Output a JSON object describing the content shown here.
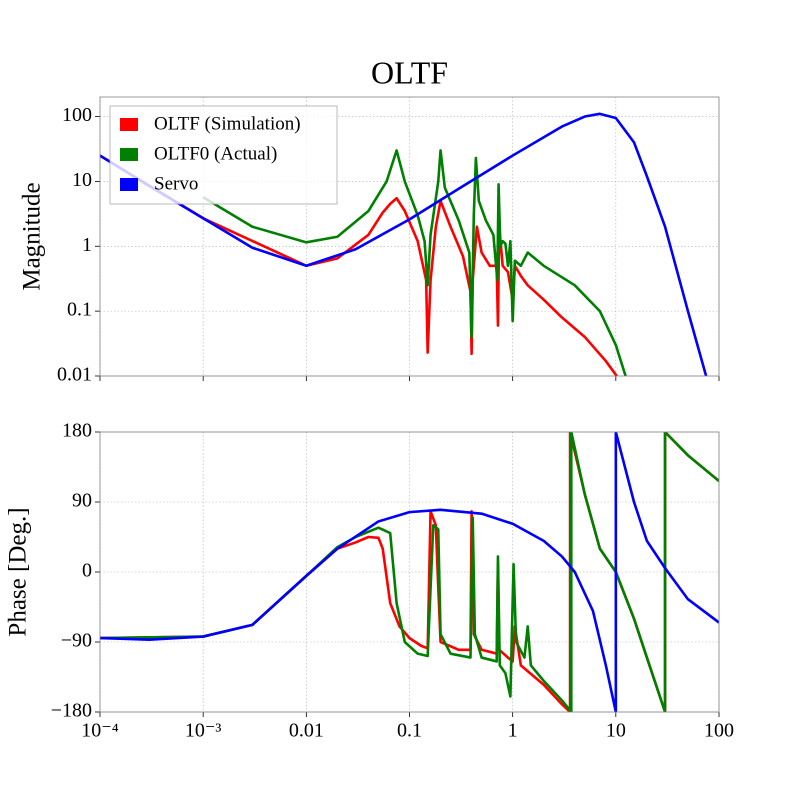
{
  "chart_data": [
    {
      "type": "line",
      "title": "OLTF",
      "ylabel": "Magnitude",
      "xscale": "log",
      "yscale": "log",
      "grid": true,
      "legend": "upper left",
      "xlim": [
        0.0001,
        100
      ],
      "xticks": [
        0.0001,
        0.001,
        0.01,
        0.1,
        1,
        10,
        100
      ],
      "ylim": [
        0.01,
        200
      ],
      "yticks": [
        0.01,
        0.1,
        1,
        10,
        100
      ],
      "series": [
        {
          "name": "OLTF (Simulation)",
          "color": "#ff0000",
          "x": [
            0.0001,
            0.001,
            0.01,
            0.02,
            0.04,
            0.055,
            0.065,
            0.075,
            0.09,
            0.12,
            0.145,
            0.15,
            0.16,
            0.18,
            0.2,
            0.25,
            0.33,
            0.39,
            0.4,
            0.41,
            0.45,
            0.5,
            0.6,
            0.7,
            0.72,
            0.74,
            0.8,
            0.9,
            1.0,
            1.05,
            1.2,
            1.4,
            2,
            3,
            5,
            8,
            12
          ],
          "values": [
            25,
            2.7,
            0.5,
            0.65,
            1.5,
            3.3,
            4.5,
            5.5,
            3.5,
            1.2,
            0.3,
            0.023,
            0.3,
            2,
            5,
            2,
            0.7,
            0.2,
            0.022,
            0.3,
            2,
            0.8,
            0.5,
            0.5,
            0.06,
            2,
            0.5,
            0.4,
            0.15,
            0.5,
            0.35,
            0.25,
            0.15,
            0.08,
            0.04,
            0.017,
            0.007
          ]
        },
        {
          "name": "OLTF0 (Actual)",
          "color": "#008000",
          "x": [
            0.001,
            0.003,
            0.01,
            0.02,
            0.04,
            0.06,
            0.075,
            0.09,
            0.12,
            0.14,
            0.15,
            0.16,
            0.19,
            0.2,
            0.22,
            0.3,
            0.38,
            0.4,
            0.42,
            0.44,
            0.47,
            0.55,
            0.65,
            0.71,
            0.73,
            0.76,
            0.8,
            0.85,
            0.9,
            0.95,
            1.0,
            1.05,
            1.2,
            1.4,
            2,
            4,
            7,
            10,
            13
          ],
          "values": [
            5.7,
            2,
            1.15,
            1.4,
            3.5,
            10,
            30,
            10,
            3,
            1.2,
            0.25,
            1.5,
            10,
            30,
            8,
            2.5,
            0.8,
            0.04,
            3,
            23,
            5,
            2.5,
            1.5,
            0.3,
            9,
            1,
            1.2,
            1.1,
            0.5,
            1.2,
            0.07,
            0.6,
            0.5,
            0.8,
            0.5,
            0.25,
            0.1,
            0.03,
            0.008
          ]
        },
        {
          "name": "Servo",
          "color": "#0000ff",
          "x": [
            0.0001,
            0.0003,
            0.001,
            0.003,
            0.01,
            0.03,
            0.1,
            0.3,
            1,
            3,
            5,
            7,
            10,
            15,
            20,
            30,
            50,
            75
          ],
          "values": [
            25,
            8.5,
            2.7,
            0.95,
            0.5,
            0.9,
            2.6,
            7.7,
            25,
            70,
            100,
            110,
            95,
            40,
            12,
            2,
            0.1,
            0.01
          ]
        }
      ]
    },
    {
      "type": "line",
      "ylabel": "Phase [Deg.]",
      "xscale": "log",
      "yscale": "linear",
      "grid": true,
      "xlim": [
        0.0001,
        100
      ],
      "xticks": [
        {
          "value": 0.0001,
          "label": "10⁻⁴"
        },
        {
          "value": 0.001,
          "label": "10⁻³"
        },
        0.01,
        0.1,
        1,
        10,
        100
      ],
      "ylim": [
        -180,
        180
      ],
      "yticks": [
        {
          "value": -180,
          "label": "−180"
        },
        {
          "value": -90,
          "label": "−90"
        },
        0,
        90,
        180
      ],
      "series": [
        {
          "color": "#ff0000",
          "x": [
            0.0001,
            0.001,
            0.003,
            0.01,
            0.02,
            0.03,
            0.04,
            0.05,
            0.055,
            0.065,
            0.08,
            0.1,
            0.13,
            0.15,
            0.16,
            0.18,
            0.19,
            0.2,
            0.3,
            0.39,
            0.4,
            0.42,
            0.5,
            0.7,
            0.72,
            0.74,
            0.9,
            1,
            1.05,
            1.2,
            2,
            3,
            3.6,
            3.6,
            5,
            7,
            10,
            15,
            20,
            30,
            30,
            50,
            100
          ],
          "values": [
            -85,
            -83,
            -68,
            -5,
            30,
            38,
            45,
            44,
            30,
            -40,
            -70,
            -85,
            -95,
            -98,
            78,
            60,
            -20,
            -90,
            -100,
            -100,
            78,
            -80,
            -100,
            -105,
            10,
            -100,
            -110,
            -115,
            -70,
            -120,
            -145,
            -170,
            -180,
            180,
            100,
            30,
            0,
            -60,
            -110,
            -180,
            180,
            150,
            117
          ]
        },
        {
          "color": "#008000",
          "x": [
            0.0001,
            0.001,
            0.003,
            0.01,
            0.02,
            0.03,
            0.05,
            0.065,
            0.075,
            0.09,
            0.12,
            0.15,
            0.17,
            0.19,
            0.2,
            0.25,
            0.39,
            0.41,
            0.43,
            0.5,
            0.7,
            0.72,
            0.75,
            0.85,
            0.95,
            1.02,
            1.08,
            1.3,
            1.4,
            1.5,
            2,
            3,
            3.7,
            3.7,
            5,
            7,
            10,
            15,
            20,
            30,
            30,
            50,
            100
          ],
          "values": [
            -85,
            -83,
            -68,
            -5,
            32,
            45,
            57,
            50,
            -40,
            -90,
            -105,
            -108,
            60,
            55,
            -80,
            -105,
            -110,
            70,
            -80,
            -110,
            -115,
            20,
            -120,
            -130,
            -160,
            10,
            -90,
            -110,
            -70,
            -120,
            -140,
            -165,
            -180,
            180,
            100,
            30,
            0,
            -60,
            -110,
            -180,
            180,
            150,
            117
          ]
        },
        {
          "color": "#0000ff",
          "x": [
            0.0001,
            0.0003,
            0.001,
            0.003,
            0.01,
            0.02,
            0.05,
            0.1,
            0.2,
            0.5,
            1,
            2,
            3,
            4,
            6,
            8,
            10,
            10,
            15,
            20,
            30,
            50,
            100
          ],
          "values": [
            -85,
            -87,
            -83,
            -68,
            -5,
            30,
            65,
            77,
            80,
            75,
            62,
            40,
            20,
            0,
            -50,
            -120,
            -180,
            180,
            90,
            40,
            5,
            -35,
            -65
          ]
        }
      ]
    }
  ]
}
